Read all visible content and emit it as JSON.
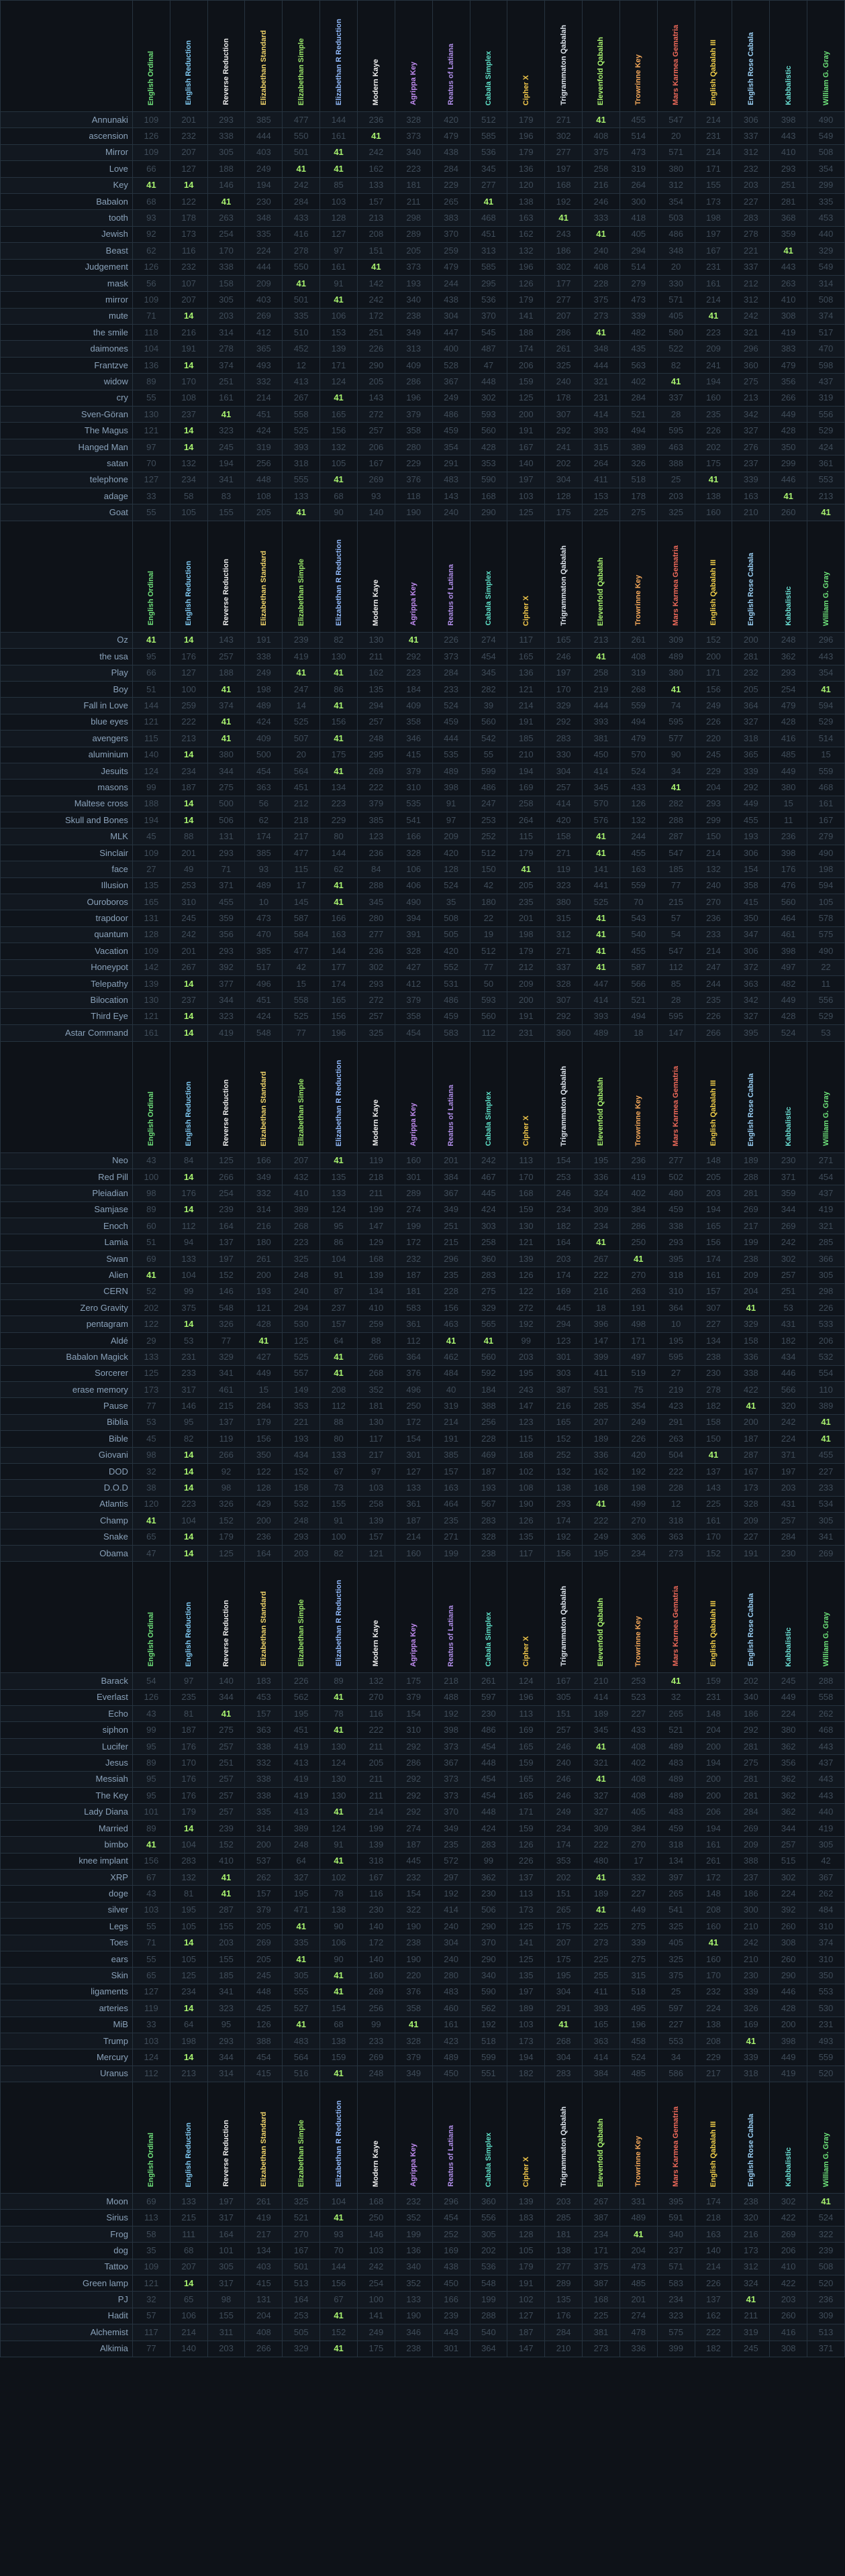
{
  "ciphers": [
    {
      "label": "English Ordinal",
      "color": "#6fe07a"
    },
    {
      "label": "English Reduction",
      "color": "#7ec8f0"
    },
    {
      "label": "Reverse Reduction",
      "color": "#e8e8e8"
    },
    {
      "label": "Elizabethan Standard",
      "color": "#f0d46a"
    },
    {
      "label": "Elizabethan Simple",
      "color": "#9be86a"
    },
    {
      "label": "Elizabethan R Reduction",
      "color": "#8fb8f8"
    },
    {
      "label": "Modern Kaye",
      "color": "#f0f0f0"
    },
    {
      "label": "Agrippa Key",
      "color": "#c08bf0"
    },
    {
      "label": "Reatus of Latiana",
      "color": "#b08ee8"
    },
    {
      "label": "Cabala Simplex",
      "color": "#5ee0c8"
    },
    {
      "label": "Cipher X",
      "color": "#f0c64a"
    },
    {
      "label": "Trigrammaton Qabalah",
      "color": "#dfe6ee"
    },
    {
      "label": "Elevenfold Qabalah",
      "color": "#a8f26f"
    },
    {
      "label": "Trowrinne Key",
      "color": "#f4a85a"
    },
    {
      "label": "Mars Karmea Gematria",
      "color": "#f06a5a"
    },
    {
      "label": "English Qabalah III",
      "color": "#f4d14a"
    },
    {
      "label": "English Rose Cabala",
      "color": "#9ad0f4"
    },
    {
      "label": "Kabbalistic",
      "color": "#6ae0d4"
    },
    {
      "label": "William G. Gray",
      "color": "#6de27a"
    }
  ],
  "blocks": [
    {
      "rows": [
        {
          "word": "Annunaki",
          "hits": [
            12
          ]
        },
        {
          "word": "ascension",
          "hits": [
            6
          ]
        },
        {
          "word": "Mirror",
          "hits": [
            5
          ]
        },
        {
          "word": "Love",
          "hits": [
            4,
            5
          ]
        },
        {
          "word": "Key",
          "hits": [
            0,
            1
          ]
        },
        {
          "word": "Babalon",
          "hits": [
            2,
            9
          ]
        },
        {
          "word": "tooth",
          "hits": [
            11
          ]
        },
        {
          "word": "Jewish",
          "hits": [
            12
          ]
        },
        {
          "word": "Beast",
          "hits": [
            17
          ]
        },
        {
          "word": "Judgement",
          "hits": [
            6
          ]
        },
        {
          "word": "mask",
          "hits": [
            4
          ]
        },
        {
          "word": "mirror",
          "hits": [
            5
          ]
        },
        {
          "word": "mute",
          "hits": [
            1,
            15
          ]
        },
        {
          "word": "the smile",
          "hits": [
            12
          ]
        },
        {
          "word": "daimones",
          "hits": []
        },
        {
          "word": "Frantzve",
          "hits": [
            1
          ]
        },
        {
          "word": "widow",
          "hits": [
            14
          ]
        },
        {
          "word": "cry",
          "hits": [
            5
          ]
        },
        {
          "word": "Sven-Göran",
          "hits": [
            2
          ]
        },
        {
          "word": "The Magus",
          "hits": [
            1
          ]
        },
        {
          "word": "Hanged Man",
          "hits": [
            1
          ]
        },
        {
          "word": "satan",
          "hits": []
        },
        {
          "word": "telephone",
          "hits": [
            5,
            15
          ]
        },
        {
          "word": "adage",
          "hits": [
            17
          ]
        },
        {
          "word": "Goat",
          "hits": [
            4,
            18
          ]
        }
      ]
    },
    {
      "rows": [
        {
          "word": "Oz",
          "hits": [
            0,
            1,
            7
          ]
        },
        {
          "word": "the usa",
          "hits": [
            12
          ]
        },
        {
          "word": "Play",
          "hits": [
            4,
            5
          ]
        },
        {
          "word": "Boy",
          "hits": [
            2,
            14,
            18
          ]
        },
        {
          "word": "Fall in Love",
          "hits": [
            5
          ]
        },
        {
          "word": "blue eyes",
          "hits": [
            2
          ]
        },
        {
          "word": "avengers",
          "hits": [
            2,
            5
          ]
        },
        {
          "word": "aluminium",
          "hits": [
            1
          ]
        },
        {
          "word": "Jesuits",
          "hits": [
            5
          ]
        },
        {
          "word": "masons",
          "hits": [
            14
          ]
        },
        {
          "word": "Maltese cross",
          "hits": [
            1
          ]
        },
        {
          "word": "Skull and Bones",
          "hits": [
            1
          ]
        },
        {
          "word": "MLK",
          "hits": [
            12
          ]
        },
        {
          "word": "Sinclair",
          "hits": [
            12
          ]
        },
        {
          "word": "face",
          "hits": [
            10
          ]
        },
        {
          "word": "Illusion",
          "hits": [
            5
          ]
        },
        {
          "word": "Ouroboros",
          "hits": [
            5
          ]
        },
        {
          "word": "trapdoor",
          "hits": [
            12
          ]
        },
        {
          "word": "quantum",
          "hits": [
            12
          ]
        },
        {
          "word": "Vacation",
          "hits": [
            12
          ]
        },
        {
          "word": "Honeypot",
          "hits": [
            12
          ]
        },
        {
          "word": "Telepathy",
          "hits": [
            1
          ]
        },
        {
          "word": "Bilocation",
          "hits": []
        },
        {
          "word": "Third Eye",
          "hits": [
            1
          ]
        },
        {
          "word": "Astar Command",
          "hits": [
            1
          ]
        }
      ]
    },
    {
      "rows": [
        {
          "word": "Neo",
          "hits": [
            5
          ]
        },
        {
          "word": "Red Pill",
          "hits": [
            1
          ]
        },
        {
          "word": "Pleiadian",
          "hits": []
        },
        {
          "word": "Samjase",
          "hits": [
            1
          ]
        },
        {
          "word": "Enoch",
          "hits": []
        },
        {
          "word": "Lamia",
          "hits": [
            12
          ]
        },
        {
          "word": "Swan",
          "hits": [
            13
          ]
        },
        {
          "word": "Alien",
          "hits": [
            0
          ]
        },
        {
          "word": "CERN",
          "hits": []
        },
        {
          "word": "Zero Gravity",
          "hits": [
            16
          ]
        },
        {
          "word": "pentagram",
          "hits": [
            1
          ]
        },
        {
          "word": "Aldé",
          "hits": [
            3,
            8,
            9
          ]
        },
        {
          "word": "Babalon Magick",
          "hits": [
            5
          ]
        },
        {
          "word": "Sorcerer",
          "hits": [
            5
          ]
        },
        {
          "word": "erase memory",
          "hits": []
        },
        {
          "word": "Pause",
          "hits": [
            16
          ]
        },
        {
          "word": "Biblia",
          "hits": [
            18
          ]
        },
        {
          "word": "Bible",
          "hits": [
            18
          ]
        },
        {
          "word": "Giovani",
          "hits": [
            1,
            15
          ]
        },
        {
          "word": "DOD",
          "hits": [
            1
          ]
        },
        {
          "word": "D.O.D",
          "hits": [
            1
          ]
        },
        {
          "word": "Atlantis",
          "hits": [
            12
          ]
        },
        {
          "word": "Champ",
          "hits": [
            0
          ]
        },
        {
          "word": "Snake",
          "hits": [
            1
          ]
        },
        {
          "word": "Obama",
          "hits": [
            1
          ]
        }
      ]
    },
    {
      "rows": [
        {
          "word": "Barack",
          "hits": [
            14
          ]
        },
        {
          "word": "Everlast",
          "hits": [
            5
          ]
        },
        {
          "word": "Echo",
          "hits": [
            2
          ]
        },
        {
          "word": "siphon",
          "hits": [
            5
          ]
        },
        {
          "word": "Lucifer",
          "hits": [
            12
          ]
        },
        {
          "word": "Jesus",
          "hits": []
        },
        {
          "word": "Messiah",
          "hits": [
            12
          ]
        },
        {
          "word": "The Key",
          "hits": []
        },
        {
          "word": "Lady Diana",
          "hits": [
            5
          ]
        },
        {
          "word": "Married",
          "hits": [
            1
          ]
        },
        {
          "word": "bimbo",
          "hits": [
            0
          ]
        },
        {
          "word": "knee implant",
          "hits": [
            5
          ]
        },
        {
          "word": "XRP",
          "hits": [
            2,
            12
          ]
        },
        {
          "word": "doge",
          "hits": [
            2
          ]
        },
        {
          "word": "silver",
          "hits": [
            12
          ]
        },
        {
          "word": "Legs",
          "hits": [
            4
          ]
        },
        {
          "word": "Toes",
          "hits": [
            1,
            15
          ]
        },
        {
          "word": "ears",
          "hits": [
            4
          ]
        },
        {
          "word": "Skin",
          "hits": [
            5
          ]
        },
        {
          "word": "ligaments",
          "hits": [
            5
          ]
        },
        {
          "word": "arteries",
          "hits": [
            1
          ]
        },
        {
          "word": "MiB",
          "hits": [
            4,
            7,
            11
          ]
        },
        {
          "word": "Trump",
          "hits": [
            16
          ]
        },
        {
          "word": "Mercury",
          "hits": [
            1
          ]
        },
        {
          "word": "Uranus",
          "hits": [
            5
          ]
        }
      ]
    },
    {
      "rows": [
        {
          "word": "Moon",
          "hits": [
            18
          ]
        },
        {
          "word": "Sirius",
          "hits": [
            5
          ]
        },
        {
          "word": "Frog",
          "hits": [
            13
          ]
        },
        {
          "word": "dog",
          "hits": []
        },
        {
          "word": "Tattoo",
          "hits": []
        },
        {
          "word": "Green lamp",
          "hits": [
            1
          ]
        },
        {
          "word": "PJ",
          "hits": [
            16
          ]
        },
        {
          "word": "Hadit",
          "hits": [
            5
          ]
        },
        {
          "word": "Alchemist",
          "hits": []
        },
        {
          "word": "Alkimia",
          "hits": [
            5
          ]
        }
      ]
    }
  ]
}
